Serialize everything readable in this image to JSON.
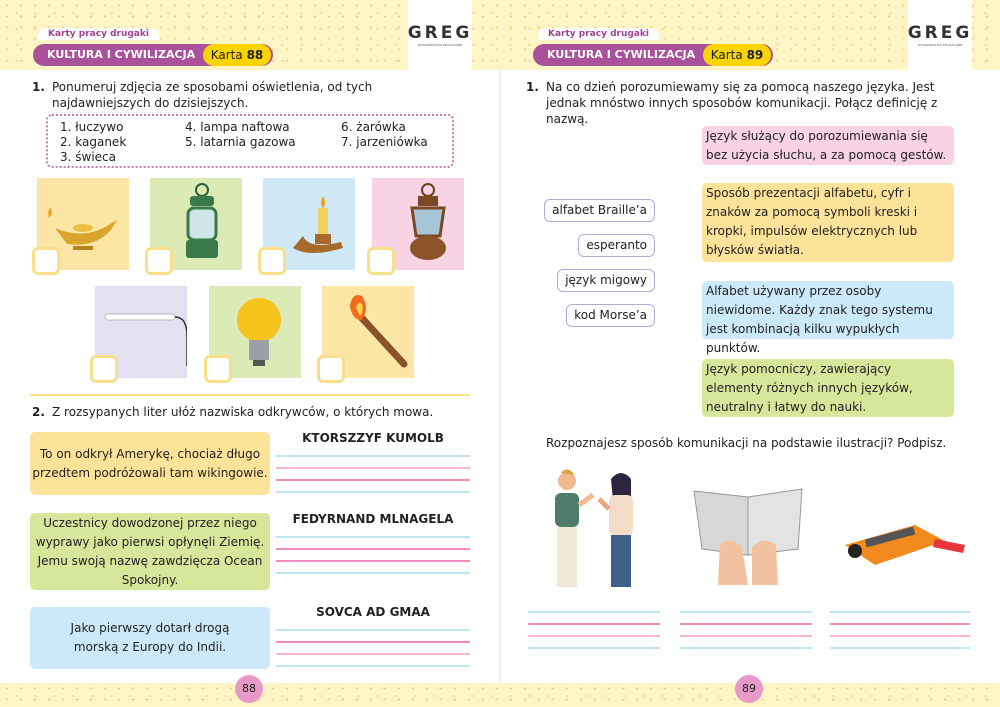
{
  "left": {
    "series": "Karty pracy drugaki",
    "section": "KULTURA I CYWILIZACJA",
    "karta_label": "Karta",
    "karta_num": "88",
    "logo": "GREG",
    "logo_sub": "WYDAWNICTWO EDUKACYJNE",
    "q1": {
      "num": "1.",
      "text": "Ponumeruj zdjęcia ze sposobami oświetlenia, od tych najdawniejszych do dzisiejszych.",
      "items": [
        "1. łuczywo",
        "2. kaganek",
        "3. świeca",
        "4. lampa naftowa",
        "5. latarnia gazowa",
        "6. żarówka",
        "7. jarzeniówka"
      ]
    },
    "tiles": [
      {
        "icon": "oil-lamp-icon",
        "color": "#fbe6a6"
      },
      {
        "icon": "lantern-icon",
        "color": "#dcebb5"
      },
      {
        "icon": "candle-icon",
        "color": "#cfe8f5"
      },
      {
        "icon": "kerosene-lamp-icon",
        "color": "#f8d3e3"
      },
      {
        "icon": "fluorescent-tube-icon",
        "color": "#e3e1f1"
      },
      {
        "icon": "light-bulb-icon",
        "color": "#dcebb5"
      },
      {
        "icon": "torch-icon",
        "color": "#fbe6a6"
      }
    ],
    "q2": {
      "num": "2.",
      "text": "Z rozsypanych liter ułóż nazwiska odkrywców, o których mowa.",
      "clues": [
        {
          "text": "To on odkrył Amerykę, chociaż długo przedtem podróżowali tam wikingowie.",
          "anagram": "KTORSZZYF KUMOLB",
          "color": "#fde39a"
        },
        {
          "text": "Uczestnicy dowodzonej przez niego wyprawy jako pierwsi opłynęli Ziemię. Jemu swoją nazwę zawdzięcza Ocean Spokojny.",
          "anagram": "FEDYRNAND MLNAGELA",
          "color": "#d6e79c"
        },
        {
          "text": "Jako pierwszy dotarł drogą morską z Europy do Indii.",
          "anagram": "SOVCA AD GMAA",
          "color": "#cbe9f8"
        }
      ]
    },
    "page": "88"
  },
  "right": {
    "series": "Karty pracy drugaki",
    "section": "KULTURA I CYWILIZACJA",
    "karta_label": "Karta",
    "karta_num": "89",
    "logo": "GREG",
    "logo_sub": "WYDAWNICTWO EDUKACYJNE",
    "q1": {
      "num": "1.",
      "text": "Na co dzień porozumiewamy się za pomocą naszego języka. Jest jednak mnóstwo innych sposobów komunikacji. Połącz definicję z nazwą."
    },
    "names": [
      "alfabet Braille’a",
      "esperanto",
      "język migowy",
      "kod Morse’a"
    ],
    "definitions": [
      {
        "text": "Język służący do porozumiewania się bez użycia słuchu, a za pomocą gestów.",
        "color": "#f9d3e4"
      },
      {
        "text": "Sposób prezentacji alfabetu, cyfr i znaków za pomocą symboli kreski i kropki, impulsów elektrycznych lub błysków światła.",
        "color": "#fde39a"
      },
      {
        "text": "Alfabet używany przez osoby niewidome. Każdy znak tego systemu jest kombinacją kilku wypukłych punktów.",
        "color": "#cbe9f8"
      },
      {
        "text": "Język pomocniczy, zawierający elementy różnych innych języków, neutralny i łatwy do nauki.",
        "color": "#d6e79c"
      }
    ],
    "q2": "Rozpoznajesz sposób komunikacji na podstawie ilustracji? Podpisz.",
    "illustrations": [
      "sign-language-people-icon",
      "braille-book-icon",
      "telegraph-key-icon"
    ],
    "page": "89"
  }
}
